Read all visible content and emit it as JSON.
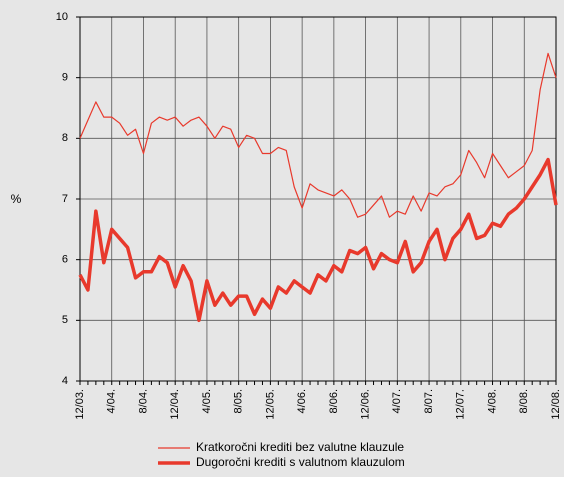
{
  "chart_data": {
    "type": "line",
    "y_label": "%",
    "categories": [
      "12/03.",
      null,
      null,
      null,
      "4/04.",
      null,
      null,
      null,
      "8/04.",
      null,
      null,
      null,
      "12/04.",
      null,
      null,
      null,
      "4/05.",
      null,
      null,
      null,
      "8/05.",
      null,
      null,
      null,
      "12/05.",
      null,
      null,
      null,
      "4/06.",
      null,
      null,
      null,
      "8/06.",
      null,
      null,
      null,
      "12/06.",
      null,
      null,
      null,
      "4/07.",
      null,
      null,
      null,
      "8/07.",
      null,
      null,
      null,
      "12/07.",
      null,
      null,
      null,
      "4/08.",
      null,
      null,
      null,
      "8/08.",
      null,
      null,
      null,
      "12/08."
    ],
    "series": [
      {
        "name": "Kratkoročni krediti bez valutne klauzule",
        "color": "#e8392c",
        "width": 1.2,
        "values": [
          8.0,
          8.3,
          8.6,
          8.35,
          8.35,
          8.25,
          8.05,
          8.15,
          7.75,
          8.25,
          8.35,
          8.3,
          8.35,
          8.2,
          8.3,
          8.35,
          8.2,
          8.0,
          8.2,
          8.15,
          7.85,
          8.05,
          8.0,
          7.75,
          7.75,
          7.85,
          7.8,
          7.2,
          6.85,
          7.25,
          7.15,
          7.1,
          7.05,
          7.15,
          7.0,
          6.7,
          6.75,
          6.9,
          7.05,
          6.7,
          6.8,
          6.75,
          7.05,
          6.8,
          7.1,
          7.05,
          7.2,
          7.25,
          7.4,
          7.8,
          7.6,
          7.35,
          7.75,
          7.55,
          7.35,
          7.45,
          7.55,
          7.8,
          8.8,
          9.4,
          9.0
        ]
      },
      {
        "name": "Dugoročni krediti s valutnom klauzulom",
        "color": "#e8392c",
        "width": 3.5,
        "values": [
          5.75,
          5.5,
          6.8,
          5.95,
          6.5,
          6.35,
          6.2,
          5.7,
          5.8,
          5.8,
          6.05,
          5.95,
          5.55,
          5.9,
          5.65,
          5.0,
          5.65,
          5.25,
          5.45,
          5.25,
          5.4,
          5.4,
          5.1,
          5.35,
          5.2,
          5.55,
          5.45,
          5.65,
          5.55,
          5.45,
          5.75,
          5.65,
          5.9,
          5.8,
          6.15,
          6.1,
          6.2,
          5.85,
          6.1,
          6.0,
          5.95,
          6.3,
          5.8,
          5.95,
          6.3,
          6.5,
          6.0,
          6.35,
          6.5,
          6.75,
          6.35,
          6.4,
          6.6,
          6.55,
          6.75,
          6.85,
          7.0,
          7.2,
          7.4,
          7.65,
          6.9
        ]
      }
    ],
    "ylim": [
      4,
      10
    ],
    "yticks": [
      4,
      5,
      6,
      7,
      8,
      9,
      10
    ],
    "grid": true
  }
}
